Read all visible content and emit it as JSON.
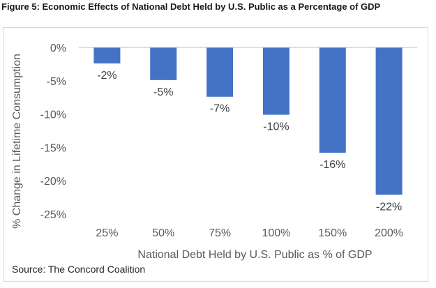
{
  "figure_title": "Figure 5: Economic Effects of National Debt Held by U.S. Public as a Percentage of GDP",
  "source": "Source: The Concord Coalition",
  "colors": {
    "bar": "#4472C4",
    "grid": "#d9d9d9"
  },
  "chart_data": {
    "type": "bar",
    "title": "",
    "xlabel": "National Debt Held by U.S. Public as % of GDP",
    "ylabel": "% Change in Lifetime Consumption",
    "categories": [
      "25%",
      "50%",
      "75%",
      "100%",
      "150%",
      "200%"
    ],
    "values": [
      -2.4,
      -4.9,
      -7.4,
      -10.1,
      -15.8,
      -22.1
    ],
    "data_labels": [
      "-2%",
      "-5%",
      "-7%",
      "-10%",
      "-16%",
      "-22%"
    ],
    "ylim": [
      -25,
      0
    ],
    "yticks": [
      0,
      -5,
      -10,
      -15,
      -20,
      -25
    ],
    "ytick_labels": [
      "0%",
      "-5%",
      "-10%",
      "-15%",
      "-20%",
      "-25%"
    ],
    "grid": false,
    "legend": "none"
  }
}
